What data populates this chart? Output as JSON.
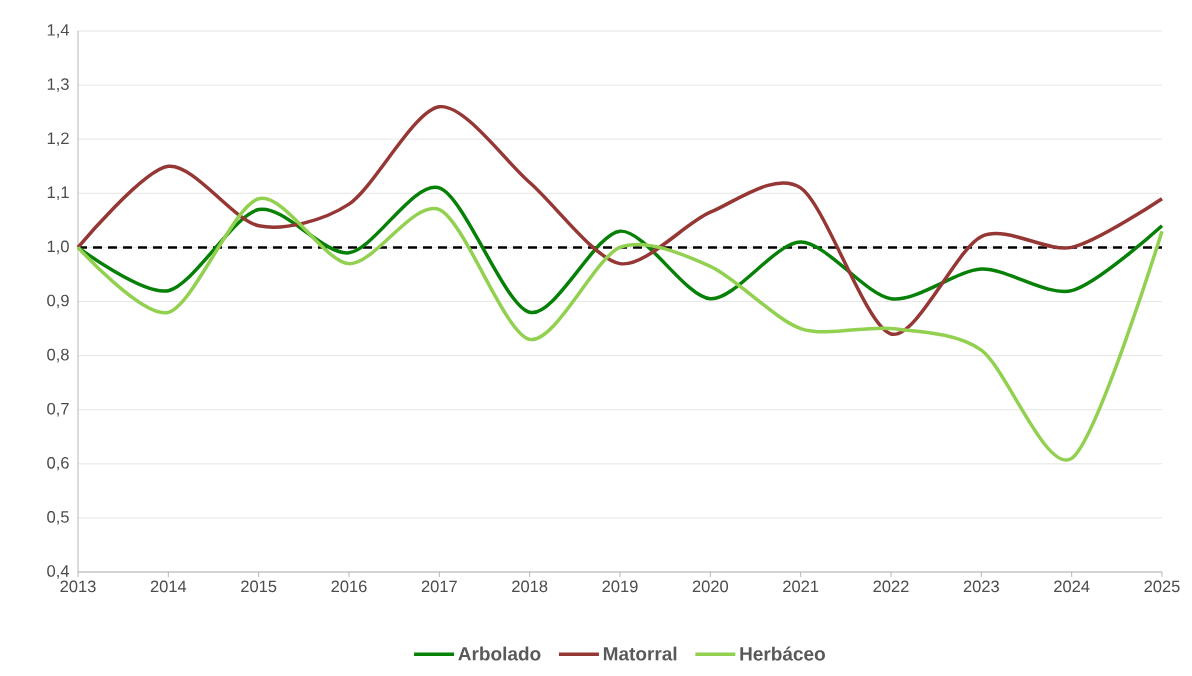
{
  "chart_data": {
    "type": "line",
    "x": [
      2013,
      2014,
      2015,
      2016,
      2017,
      2018,
      2019,
      2020,
      2021,
      2022,
      2023,
      2024,
      2025
    ],
    "series": [
      {
        "name": "Arbolado",
        "color": "#078007",
        "values": [
          1.0,
          0.92,
          1.07,
          0.99,
          1.11,
          0.88,
          1.03,
          0.905,
          1.01,
          0.905,
          0.96,
          0.92,
          1.04
        ]
      },
      {
        "name": "Matorral",
        "color": "#953735",
        "values": [
          1.0,
          1.15,
          1.04,
          1.08,
          1.26,
          1.12,
          0.97,
          1.065,
          1.11,
          0.84,
          1.02,
          1.0,
          1.09
        ]
      },
      {
        "name": "Herbáceo",
        "color": "#92d050",
        "values": [
          1.0,
          0.88,
          1.09,
          0.97,
          1.07,
          0.83,
          1.0,
          0.965,
          0.85,
          0.85,
          0.81,
          0.61,
          1.03
        ]
      }
    ],
    "xlim": [
      2013,
      2025
    ],
    "xticks": [
      2013,
      2014,
      2015,
      2016,
      2017,
      2018,
      2019,
      2020,
      2021,
      2022,
      2023,
      2024,
      2025
    ],
    "ylim": [
      0.4,
      1.4
    ],
    "yticks": [
      {
        "value": 0.4,
        "label": "0,4"
      },
      {
        "value": 0.5,
        "label": "0,5"
      },
      {
        "value": 0.6,
        "label": "0,6"
      },
      {
        "value": 0.7,
        "label": "0,7"
      },
      {
        "value": 0.8,
        "label": "0,8"
      },
      {
        "value": 0.9,
        "label": "0,9"
      },
      {
        "value": 1.0,
        "label": "1,0"
      },
      {
        "value": 1.1,
        "label": "1,1"
      },
      {
        "value": 1.2,
        "label": "1,2"
      },
      {
        "value": 1.3,
        "label": "1,3"
      },
      {
        "value": 1.4,
        "label": "1,4"
      }
    ],
    "ref_lines": [
      {
        "axis": "y",
        "value": 1.0,
        "color": "#000000",
        "line_style": "dashed"
      }
    ],
    "grid": "y",
    "legend": "bottom",
    "marker": "none",
    "line_style": "solid"
  }
}
